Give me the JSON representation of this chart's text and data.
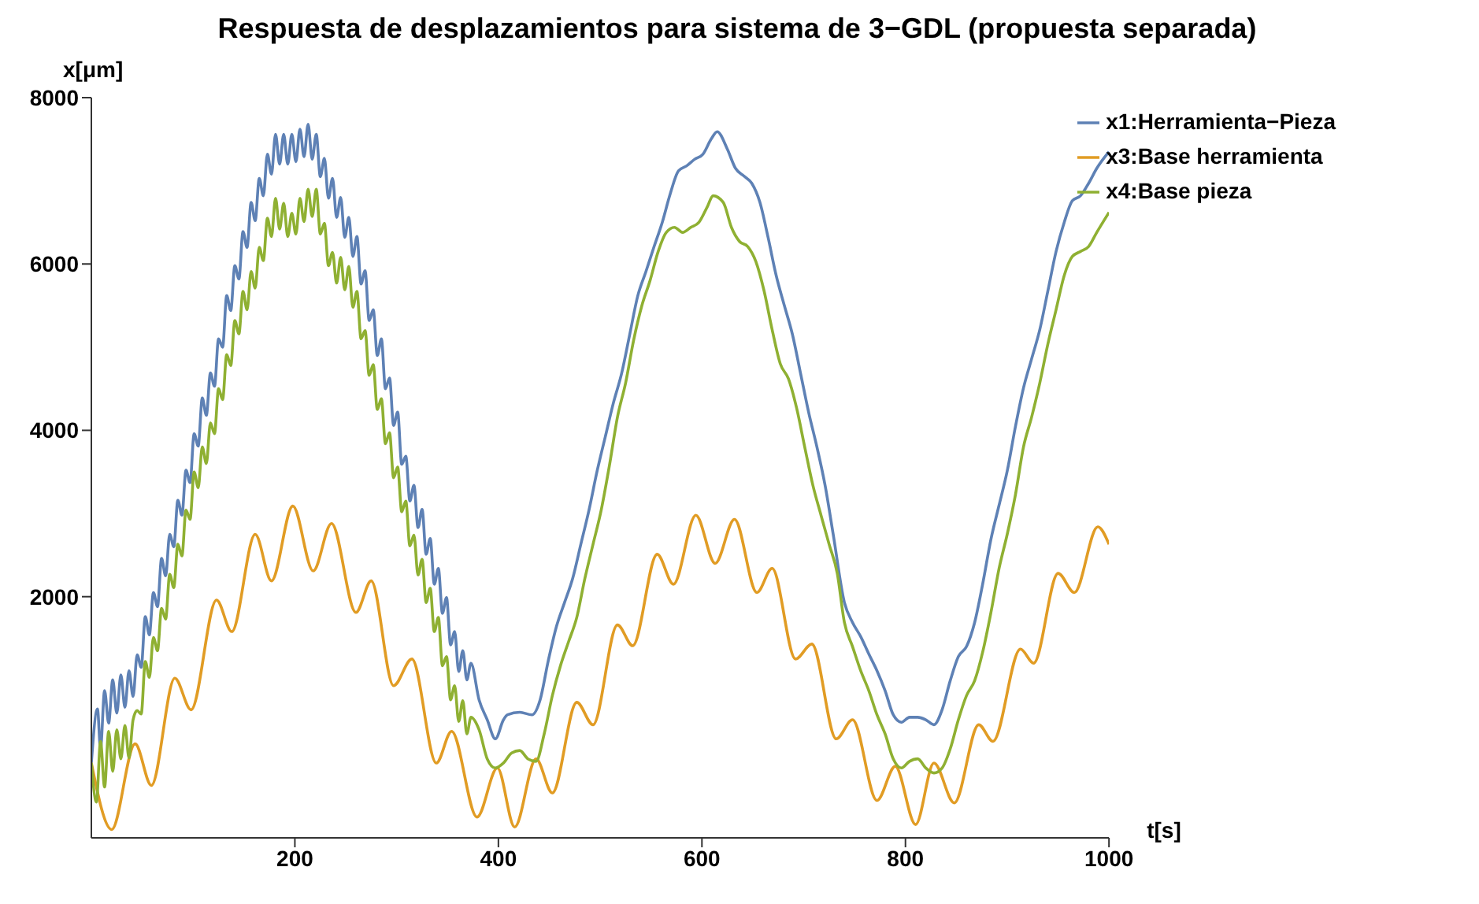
{
  "chart_data": {
    "type": "line",
    "title": "Respuesta de desplazamientos para sistema de 3−GDL (propuesta separada)",
    "xlabel": "t[s]",
    "ylabel": "x[μm]",
    "xlim": [
      0,
      1000
    ],
    "xticks": [
      200,
      400,
      600,
      800,
      1000
    ],
    "ylim": [
      -900,
      8000
    ],
    "yticks": [
      2000,
      4000,
      6000,
      8000
    ],
    "grid": false,
    "legend": "top right",
    "marker": "none",
    "line_style": "solid",
    "series": [
      {
        "name": "x1:Herramienta−Pieza",
        "color": "#5e81b5",
        "x": [
          0,
          6,
          9,
          13,
          17,
          21,
          25,
          29,
          33,
          37,
          41,
          45,
          49,
          53,
          57,
          61,
          65,
          69,
          73,
          77,
          81,
          85,
          89,
          93,
          97,
          101,
          105,
          109,
          113,
          117,
          121,
          125,
          129,
          133,
          137,
          141,
          145,
          149,
          153,
          157,
          161,
          165,
          169,
          173,
          177,
          181,
          185,
          189,
          193,
          197,
          201,
          205,
          209,
          213,
          217,
          221,
          225,
          229,
          233,
          237,
          241,
          245,
          249,
          253,
          257,
          261,
          265,
          269,
          273,
          277,
          281,
          285,
          289,
          293,
          297,
          301,
          305,
          309,
          313,
          317,
          321,
          325,
          329,
          333,
          337,
          341,
          345,
          349,
          353,
          357,
          361,
          365,
          369,
          373,
          381,
          389,
          397,
          405,
          409,
          421,
          433,
          441,
          449,
          457,
          465,
          473,
          481,
          489,
          497,
          505,
          513,
          521,
          529,
          537,
          545,
          553,
          561,
          569,
          577,
          585,
          593,
          601,
          609,
          615,
          625,
          633,
          641,
          649,
          657,
          665,
          673,
          681,
          689,
          697,
          705,
          713,
          721,
          729,
          740,
          748,
          756,
          764,
          772,
          780,
          788,
          796,
          804,
          812,
          820,
          828,
          836,
          844,
          852,
          860,
          868,
          876,
          884,
          892,
          900,
          908,
          916,
          924,
          932,
          940,
          948,
          956,
          964,
          972,
          980,
          988,
          1000
        ],
        "values": [
          0,
          650,
          170,
          870,
          480,
          1000,
          600,
          1060,
          670,
          1110,
          800,
          1300,
          1150,
          1760,
          1540,
          2050,
          1880,
          2460,
          2250,
          2750,
          2600,
          3160,
          2980,
          3520,
          3370,
          3960,
          3810,
          4390,
          4180,
          4690,
          4530,
          5100,
          5000,
          5620,
          5440,
          5980,
          5820,
          6390,
          6200,
          6740,
          6520,
          7030,
          6820,
          7320,
          7080,
          7560,
          7200,
          7560,
          7200,
          7560,
          7230,
          7620,
          7290,
          7680,
          7260,
          7560,
          7050,
          7270,
          6790,
          7030,
          6560,
          6800,
          6320,
          6560,
          6090,
          6330,
          5760,
          5920,
          5320,
          5450,
          4900,
          5100,
          4500,
          4630,
          4060,
          4220,
          3590,
          3690,
          3150,
          3340,
          2830,
          3050,
          2510,
          2700,
          2150,
          2340,
          1800,
          1990,
          1420,
          1580,
          1100,
          1350,
          1000,
          1200,
          760,
          520,
          290,
          520,
          580,
          610,
          580,
          760,
          1230,
          1640,
          1930,
          2220,
          2630,
          3040,
          3510,
          3920,
          4330,
          4680,
          5150,
          5620,
          5910,
          6210,
          6500,
          6850,
          7120,
          7180,
          7260,
          7320,
          7500,
          7590,
          7380,
          7150,
          7060,
          6970,
          6740,
          6320,
          5860,
          5500,
          5150,
          4680,
          4210,
          3800,
          3340,
          2750,
          1930,
          1690,
          1520,
          1310,
          1110,
          870,
          580,
          490,
          550,
          550,
          520,
          460,
          640,
          990,
          1280,
          1400,
          1690,
          2160,
          2690,
          3100,
          3510,
          4040,
          4510,
          4860,
          5210,
          5680,
          6150,
          6500,
          6760,
          6820,
          6970,
          7150,
          7350
        ]
      },
      {
        "name": "x3:Base herramienta",
        "color": "#e19c24",
        "x": [
          0,
          20,
          43,
          59,
          82,
          98,
          123,
          138,
          161,
          177,
          198,
          218,
          236,
          260,
          275,
          297,
          315,
          339,
          354,
          379,
          399,
          416,
          437,
          453,
          477,
          493,
          517,
          532,
          556,
          572,
          594,
          613,
          632,
          654,
          669,
          692,
          708,
          732,
          748,
          772,
          790,
          810,
          828,
          848,
          872,
          886,
          913,
          926,
          950,
          966,
          989,
          1000
        ],
        "values": [
          0,
          -800,
          230,
          -270,
          1020,
          640,
          1960,
          1580,
          2750,
          2190,
          3090,
          2310,
          2880,
          1810,
          2190,
          930,
          1250,
          0,
          380,
          -650,
          -60,
          -770,
          50,
          -360,
          730,
          460,
          1660,
          1410,
          2510,
          2150,
          2980,
          2400,
          2930,
          2050,
          2340,
          1250,
          1430,
          290,
          520,
          -450,
          -40,
          -740,
          0,
          -480,
          460,
          260,
          1370,
          1200,
          2280,
          2050,
          2840,
          2630
        ]
      },
      {
        "name": "x4:Base pieza",
        "color": "#8fb032",
        "x": [
          0,
          5,
          9,
          13,
          17,
          21,
          25,
          29,
          33,
          37,
          41,
          45,
          49,
          53,
          57,
          61,
          65,
          69,
          73,
          77,
          81,
          85,
          89,
          93,
          97,
          101,
          105,
          109,
          113,
          117,
          121,
          125,
          129,
          133,
          137,
          141,
          145,
          149,
          153,
          157,
          161,
          165,
          169,
          173,
          177,
          181,
          185,
          189,
          193,
          197,
          201,
          205,
          209,
          213,
          217,
          221,
          225,
          229,
          233,
          237,
          241,
          245,
          249,
          253,
          257,
          261,
          265,
          269,
          273,
          277,
          281,
          285,
          289,
          293,
          297,
          301,
          305,
          309,
          313,
          317,
          321,
          325,
          329,
          333,
          337,
          341,
          345,
          349,
          353,
          357,
          361,
          365,
          369,
          373,
          381,
          389,
          397,
          405,
          413,
          421,
          429,
          437,
          445,
          453,
          461,
          469,
          477,
          485,
          493,
          501,
          509,
          517,
          525,
          533,
          541,
          549,
          557,
          565,
          573,
          581,
          589,
          597,
          605,
          611,
          621,
          629,
          637,
          645,
          653,
          661,
          669,
          677,
          685,
          693,
          701,
          709,
          717,
          725,
          733,
          740,
          748,
          756,
          764,
          772,
          780,
          788,
          796,
          804,
          812,
          820,
          828,
          836,
          844,
          852,
          860,
          868,
          876,
          884,
          892,
          900,
          908,
          916,
          924,
          932,
          940,
          948,
          956,
          964,
          972,
          980,
          988,
          1000
        ],
        "values": [
          0,
          -470,
          260,
          -290,
          380,
          -100,
          400,
          50,
          450,
          60,
          520,
          630,
          590,
          1220,
          1030,
          1510,
          1350,
          1860,
          1730,
          2270,
          2110,
          2630,
          2490,
          3040,
          2930,
          3500,
          3310,
          3800,
          3600,
          4090,
          3960,
          4500,
          4370,
          4910,
          4780,
          5320,
          5160,
          5670,
          5450,
          5910,
          5710,
          6200,
          6040,
          6550,
          6330,
          6790,
          6420,
          6730,
          6330,
          6610,
          6360,
          6790,
          6510,
          6900,
          6570,
          6900,
          6360,
          6490,
          5980,
          6140,
          5770,
          6080,
          5690,
          5970,
          5480,
          5670,
          5100,
          5200,
          4660,
          4790,
          4250,
          4380,
          3840,
          3970,
          3430,
          3560,
          3020,
          3150,
          2610,
          2740,
          2260,
          2450,
          1930,
          2100,
          1580,
          1750,
          1170,
          1280,
          760,
          930,
          500,
          750,
          350,
          550,
          400,
          50,
          -60,
          0,
          120,
          150,
          50,
          20,
          350,
          810,
          1170,
          1460,
          1750,
          2220,
          2630,
          3040,
          3570,
          4160,
          4570,
          5090,
          5500,
          5800,
          6150,
          6380,
          6440,
          6380,
          6440,
          6500,
          6680,
          6820,
          6740,
          6440,
          6270,
          6210,
          6030,
          5680,
          5210,
          4800,
          4620,
          4270,
          3800,
          3340,
          2980,
          2630,
          2280,
          1690,
          1400,
          1110,
          870,
          580,
          350,
          50,
          -60,
          20,
          50,
          -60,
          -120,
          -60,
          170,
          520,
          810,
          990,
          1340,
          1810,
          2340,
          2750,
          3220,
          3800,
          4160,
          4570,
          5040,
          5450,
          5860,
          6090,
          6150,
          6210,
          6380,
          6620
        ]
      }
    ]
  }
}
